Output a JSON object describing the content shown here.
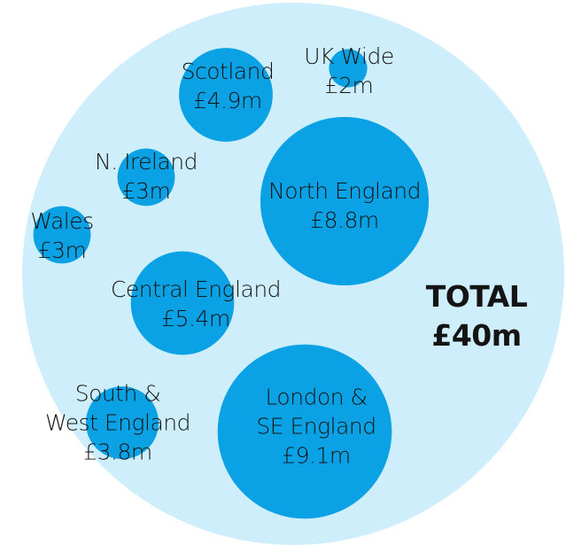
{
  "chart_data": {
    "type": "bubble",
    "categories": [
      [
        "Scotland"
      ],
      [
        "UK Wide"
      ],
      [
        "N. Ireland"
      ],
      [
        "North England"
      ],
      [
        "Wales"
      ],
      [
        "Central England"
      ],
      [
        "South &",
        "West England"
      ],
      [
        "London &",
        "SE England"
      ]
    ],
    "values": [
      4.9,
      2,
      3,
      8.8,
      3,
      5.4,
      3.8,
      9.1
    ],
    "value_labels": [
      "£4.9m",
      "£2m",
      "£3m",
      "£8.8m",
      "£3m",
      "£5.4m",
      "£3.8m",
      "£9.1m"
    ],
    "color": "#0aa2e4",
    "total": {
      "label": "TOTAL",
      "value": 40,
      "value_label": "£40m",
      "color": "#cdeefa"
    }
  }
}
